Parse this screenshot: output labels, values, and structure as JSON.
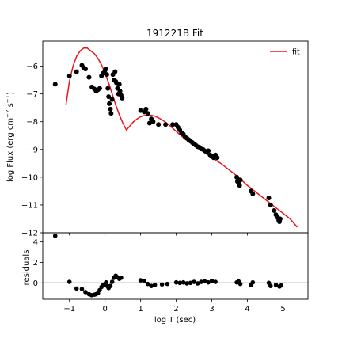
{
  "chart_data": {
    "title": "191221B Fit",
    "type": "scatter",
    "colors": {
      "data": "#000000",
      "fit": "#e8161c",
      "axes": "#000000",
      "background": "#ffffff"
    },
    "legend": {
      "placement": "top-right",
      "entries": [
        "fit"
      ]
    },
    "grid": false,
    "main": {
      "ylabel_parts": [
        "log Flux (erg cm",
        "−2",
        " s",
        "−1",
        ")"
      ],
      "xlim": [
        -1.75,
        5.7
      ],
      "ylim": [
        -12.0,
        -5.1
      ],
      "yticks": [
        -12,
        -11,
        -10,
        -9,
        -8,
        -7,
        -6
      ],
      "ytick_labels": [
        "−12",
        "−11",
        "−10",
        "−9",
        "−8",
        "−7",
        "−6"
      ],
      "data_points": [
        [
          -1.4,
          -6.65
        ],
        [
          -1.0,
          -6.35
        ],
        [
          -0.8,
          -6.2
        ],
        [
          -0.65,
          -5.97
        ],
        [
          -0.6,
          -6.05
        ],
        [
          -0.55,
          -6.1
        ],
        [
          -0.45,
          -6.4
        ],
        [
          -0.37,
          -6.75
        ],
        [
          -0.3,
          -6.82
        ],
        [
          -0.25,
          -6.9
        ],
        [
          -0.2,
          -6.85
        ],
        [
          -0.15,
          -6.8
        ],
        [
          -0.1,
          -6.35
        ],
        [
          -0.05,
          -6.25
        ],
        [
          0.0,
          -6.15
        ],
        [
          0.02,
          -6.1
        ],
        [
          0.05,
          -6.3
        ],
        [
          0.08,
          -6.8
        ],
        [
          0.1,
          -7.1
        ],
        [
          0.12,
          -7.35
        ],
        [
          0.15,
          -7.55
        ],
        [
          0.17,
          -7.7
        ],
        [
          0.2,
          -7.2
        ],
        [
          0.22,
          -6.3
        ],
        [
          0.25,
          -6.5
        ],
        [
          0.28,
          -6.2
        ],
        [
          0.3,
          -6.55
        ],
        [
          0.32,
          -6.6
        ],
        [
          0.35,
          -6.8
        ],
        [
          0.38,
          -7.0
        ],
        [
          0.4,
          -6.65
        ],
        [
          0.42,
          -6.9
        ],
        [
          0.45,
          -7.05
        ],
        [
          0.48,
          -7.15
        ],
        [
          1.0,
          -7.6
        ],
        [
          1.1,
          -7.65
        ],
        [
          1.15,
          -7.55
        ],
        [
          1.2,
          -7.7
        ],
        [
          1.25,
          -8.05
        ],
        [
          1.3,
          -7.9
        ],
        [
          1.35,
          -8.0
        ],
        [
          1.5,
          -8.1
        ],
        [
          1.7,
          -8.1
        ],
        [
          1.9,
          -8.1
        ],
        [
          2.0,
          -8.1
        ],
        [
          2.05,
          -8.2
        ],
        [
          2.1,
          -8.3
        ],
        [
          2.15,
          -8.4
        ],
        [
          2.2,
          -8.45
        ],
        [
          2.25,
          -8.55
        ],
        [
          2.3,
          -8.6
        ],
        [
          2.35,
          -8.65
        ],
        [
          2.4,
          -8.7
        ],
        [
          2.45,
          -8.75
        ],
        [
          2.5,
          -8.8
        ],
        [
          2.55,
          -8.85
        ],
        [
          2.6,
          -8.9
        ],
        [
          2.65,
          -8.92
        ],
        [
          2.7,
          -8.98
        ],
        [
          2.75,
          -9.0
        ],
        [
          2.8,
          -9.05
        ],
        [
          2.85,
          -9.1
        ],
        [
          2.9,
          -9.05
        ],
        [
          2.95,
          -9.2
        ],
        [
          3.0,
          -9.25
        ],
        [
          3.05,
          -9.3
        ],
        [
          3.1,
          -9.2
        ],
        [
          3.15,
          -9.3
        ],
        [
          3.7,
          -10.0
        ],
        [
          3.72,
          -10.15
        ],
        [
          3.75,
          -10.2
        ],
        [
          3.78,
          -10.3
        ],
        [
          3.8,
          -10.1
        ],
        [
          4.1,
          -10.5
        ],
        [
          4.15,
          -10.6
        ],
        [
          4.6,
          -10.75
        ],
        [
          4.65,
          -11.0
        ],
        [
          4.75,
          -11.2
        ],
        [
          4.8,
          -11.35
        ],
        [
          4.85,
          -11.45
        ],
        [
          4.88,
          -11.55
        ],
        [
          4.9,
          -11.6
        ],
        [
          4.92,
          -11.5
        ]
      ],
      "fit_curve": [
        [
          -1.1,
          -7.4
        ],
        [
          -1.0,
          -6.55
        ],
        [
          -0.9,
          -6.0
        ],
        [
          -0.8,
          -5.65
        ],
        [
          -0.7,
          -5.45
        ],
        [
          -0.6,
          -5.35
        ],
        [
          -0.5,
          -5.35
        ],
        [
          -0.4,
          -5.45
        ],
        [
          -0.3,
          -5.55
        ],
        [
          -0.2,
          -5.72
        ],
        [
          -0.1,
          -5.95
        ],
        [
          0.0,
          -6.25
        ],
        [
          0.1,
          -6.6
        ],
        [
          0.2,
          -7.0
        ],
        [
          0.3,
          -7.4
        ],
        [
          0.4,
          -7.75
        ],
        [
          0.5,
          -8.05
        ],
        [
          0.6,
          -8.3
        ],
        [
          0.7,
          -8.15
        ],
        [
          0.8,
          -8.0
        ],
        [
          0.9,
          -7.9
        ],
        [
          1.0,
          -7.82
        ],
        [
          1.1,
          -7.78
        ],
        [
          1.2,
          -7.76
        ],
        [
          1.3,
          -7.77
        ],
        [
          1.4,
          -7.8
        ],
        [
          1.5,
          -7.86
        ],
        [
          1.6,
          -7.93
        ],
        [
          1.7,
          -8.02
        ],
        [
          1.8,
          -8.12
        ],
        [
          2.0,
          -8.35
        ],
        [
          2.25,
          -8.63
        ],
        [
          2.5,
          -8.85
        ],
        [
          2.75,
          -9.05
        ],
        [
          3.0,
          -9.3
        ],
        [
          3.25,
          -9.5
        ],
        [
          3.5,
          -9.75
        ],
        [
          3.75,
          -10.0
        ],
        [
          4.0,
          -10.3
        ],
        [
          4.25,
          -10.55
        ],
        [
          4.5,
          -10.8
        ],
        [
          4.75,
          -11.05
        ],
        [
          5.0,
          -11.3
        ],
        [
          5.2,
          -11.5
        ],
        [
          5.4,
          -11.8
        ]
      ]
    },
    "residuals": {
      "ylabel": "residuals",
      "xlabel": "log T (sec)",
      "xlim": [
        -1.75,
        5.7
      ],
      "ylim": [
        -1.6,
        4.9
      ],
      "yticks": [
        0,
        2,
        4
      ],
      "ytick_labels": [
        "0",
        "2",
        "4"
      ],
      "xticks": [
        -1,
        0,
        1,
        2,
        3,
        4,
        5
      ],
      "xtick_labels": [
        "−1",
        "0",
        "1",
        "2",
        "3",
        "4",
        "5"
      ],
      "zero_line": 0,
      "data_points": [
        [
          -1.4,
          4.6
        ],
        [
          -1.0,
          0.1
        ],
        [
          -0.8,
          -0.55
        ],
        [
          -0.65,
          -0.6
        ],
        [
          -0.55,
          -0.9
        ],
        [
          -0.45,
          -1.1
        ],
        [
          -0.38,
          -1.2
        ],
        [
          -0.3,
          -1.15
        ],
        [
          -0.25,
          -1.1
        ],
        [
          -0.2,
          -1.0
        ],
        [
          -0.15,
          -0.7
        ],
        [
          -0.1,
          -0.4
        ],
        [
          -0.05,
          -0.2
        ],
        [
          0.0,
          -0.1
        ],
        [
          0.03,
          0.05
        ],
        [
          0.06,
          -0.3
        ],
        [
          0.1,
          -0.5
        ],
        [
          0.15,
          -0.3
        ],
        [
          0.2,
          0.1
        ],
        [
          0.25,
          0.5
        ],
        [
          0.3,
          0.7
        ],
        [
          0.35,
          0.55
        ],
        [
          0.4,
          0.4
        ],
        [
          0.45,
          0.5
        ],
        [
          1.0,
          0.25
        ],
        [
          1.1,
          0.2
        ],
        [
          1.2,
          -0.1
        ],
        [
          1.3,
          -0.3
        ],
        [
          1.4,
          -0.2
        ],
        [
          1.6,
          -0.15
        ],
        [
          1.75,
          -0.1
        ],
        [
          2.0,
          0.05
        ],
        [
          2.1,
          0.0
        ],
        [
          2.2,
          0.05
        ],
        [
          2.3,
          -0.05
        ],
        [
          2.4,
          0.0
        ],
        [
          2.5,
          0.1
        ],
        [
          2.6,
          -0.05
        ],
        [
          2.7,
          0.1
        ],
        [
          2.8,
          0.15
        ],
        [
          2.9,
          0.05
        ],
        [
          3.0,
          0.2
        ],
        [
          3.1,
          0.1
        ],
        [
          3.7,
          0.05
        ],
        [
          3.75,
          0.15
        ],
        [
          3.8,
          -0.1
        ],
        [
          4.1,
          -0.2
        ],
        [
          4.15,
          0.05
        ],
        [
          4.6,
          0.0
        ],
        [
          4.65,
          -0.3
        ],
        [
          4.8,
          -0.2
        ],
        [
          4.9,
          -0.35
        ],
        [
          4.95,
          -0.25
        ]
      ]
    }
  }
}
